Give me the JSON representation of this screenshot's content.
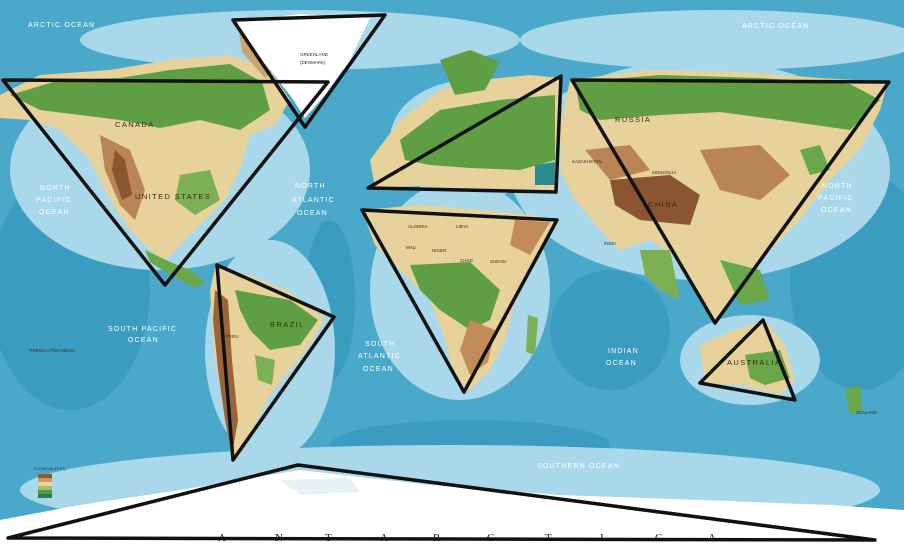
{
  "map": {
    "oceans": {
      "arctic_west": "ARCTIC OCEAN",
      "arctic_east": "ARCTIC OCEAN",
      "north_pacific_west": [
        "NORTH",
        "PACIFIC",
        "OCEAN"
      ],
      "north_pacific_east": [
        "NORTH",
        "PACIFIC",
        "OCEAN"
      ],
      "north_atlantic": [
        "NORTH",
        "ATLANTIC",
        "OCEAN"
      ],
      "south_pacific": [
        "SOUTH PACIFIC",
        "OCEAN"
      ],
      "south_atlantic": [
        "SOUTH",
        "ATLANTIC",
        "OCEAN"
      ],
      "indian": [
        "INDIAN",
        "OCEAN"
      ],
      "southern": "SOUTHERN OCEAN"
    },
    "countries": {
      "canada": "CANADA",
      "united_states": "UNITED STATES",
      "greenland": "GREENLAND",
      "greenland_sub": "(DENMARK)",
      "russia": "RUSSIA",
      "china": "CHINA",
      "india": "INDIA",
      "mongolia": "MONGOLIA",
      "kazakhstan": "KAZAKHSTAN",
      "brazil": "BRAZIL",
      "peru": "PERU",
      "algeria": "ALGERIA",
      "libya": "LIBYA",
      "mali": "MALI",
      "niger": "NIGER",
      "chad": "CHAD",
      "sudan": "SUDAN",
      "australia": "AUSTRALIA",
      "new_zealand": "ZEALAND",
      "french_polynesia": "FRENCH POLYNESIA"
    },
    "antarctica_letters": [
      "A",
      "N",
      "T",
      "A",
      "R",
      "C",
      "T",
      "I",
      "C",
      "A"
    ],
    "legend_title": "ELEVATION (FEET)"
  },
  "colors": {
    "deep_ocean": "#3fa0c4",
    "shallow_ocean": "#9fd3e6",
    "lowland": "#5a9a3c",
    "plain": "#e9d59a",
    "highland": "#c99a64",
    "mountain": "#8c5a36",
    "ice": "#ffffff",
    "triangle_stroke": "#111111"
  }
}
